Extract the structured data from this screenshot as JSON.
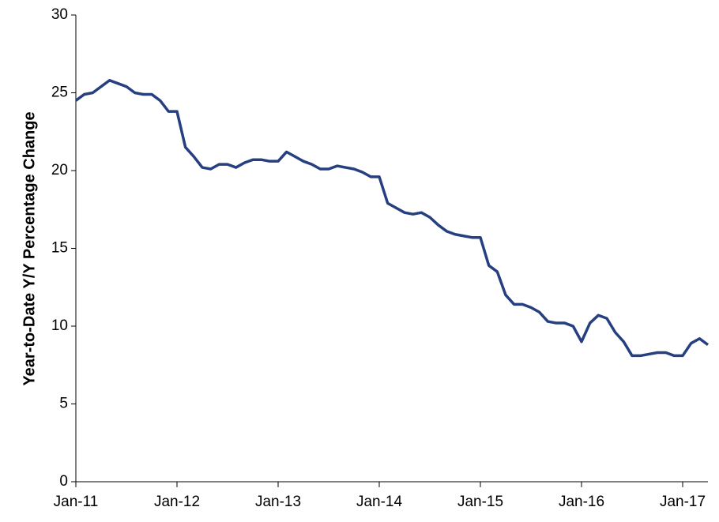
{
  "chart_data": {
    "type": "line",
    "y_label": "Year-to-Date Y/Y Percentage Change",
    "categories": [
      "Jan-11",
      null,
      null,
      null,
      null,
      null,
      null,
      null,
      null,
      null,
      null,
      null,
      "Jan-12",
      null,
      null,
      null,
      null,
      null,
      null,
      null,
      null,
      null,
      null,
      null,
      "Jan-13",
      null,
      null,
      null,
      null,
      null,
      null,
      null,
      null,
      null,
      null,
      null,
      "Jan-14",
      null,
      null,
      null,
      null,
      null,
      null,
      null,
      null,
      null,
      null,
      null,
      "Jan-15",
      null,
      null,
      null,
      null,
      null,
      null,
      null,
      null,
      null,
      null,
      null,
      "Jan-16",
      null,
      null,
      null,
      null,
      null,
      null,
      null,
      null,
      null,
      null,
      null,
      "Jan-17",
      null,
      null,
      null
    ],
    "values": [
      24.5,
      24.9,
      25.0,
      25.4,
      25.8,
      25.6,
      25.4,
      25.0,
      24.9,
      24.9,
      24.5,
      23.8,
      23.8,
      21.5,
      20.9,
      20.2,
      20.1,
      20.4,
      20.4,
      20.2,
      20.5,
      20.7,
      20.7,
      20.6,
      20.6,
      21.2,
      20.9,
      20.6,
      20.4,
      20.1,
      20.1,
      20.3,
      20.2,
      20.1,
      19.9,
      19.6,
      19.6,
      17.9,
      17.6,
      17.3,
      17.2,
      17.3,
      17.0,
      16.5,
      16.1,
      15.9,
      15.8,
      15.7,
      15.7,
      13.9,
      13.5,
      12.0,
      11.4,
      11.4,
      11.2,
      10.9,
      10.3,
      10.2,
      10.2,
      10.0,
      9.0,
      10.2,
      10.7,
      10.5,
      9.6,
      9.0,
      8.1,
      8.1,
      8.2,
      8.3,
      8.3,
      8.1,
      8.1,
      8.9,
      9.2,
      8.8
    ],
    "color": "#263f80",
    "ylim": [
      0,
      30
    ],
    "yticks": [
      0,
      5,
      10,
      15,
      20,
      25,
      30
    ],
    "grid": false
  }
}
